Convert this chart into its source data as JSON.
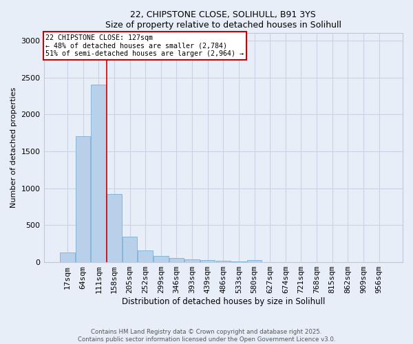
{
  "title_line1": "22, CHIPSTONE CLOSE, SOLIHULL, B91 3YS",
  "title_line2": "Size of property relative to detached houses in Solihull",
  "xlabel": "Distribution of detached houses by size in Solihull",
  "ylabel": "Number of detached properties",
  "bar_labels": [
    "17sqm",
    "64sqm",
    "111sqm",
    "158sqm",
    "205sqm",
    "252sqm",
    "299sqm",
    "346sqm",
    "393sqm",
    "439sqm",
    "486sqm",
    "533sqm",
    "580sqm",
    "627sqm",
    "674sqm",
    "721sqm",
    "768sqm",
    "815sqm",
    "862sqm",
    "909sqm",
    "956sqm"
  ],
  "bar_values": [
    130,
    1710,
    2400,
    920,
    350,
    155,
    80,
    55,
    40,
    25,
    15,
    10,
    25,
    5,
    5,
    5,
    5,
    5,
    2,
    2,
    2
  ],
  "bar_color": "#b8d0ea",
  "bar_edge_color": "#7aafd4",
  "vline_x": 2.5,
  "property_line_label": "22 CHIPSTONE CLOSE: 127sqm",
  "annotation_line2": "← 48% of detached houses are smaller (2,784)",
  "annotation_line3": "51% of semi-detached houses are larger (2,964) →",
  "annotation_box_facecolor": "#ffffff",
  "annotation_box_edgecolor": "#cc0000",
  "vline_color": "#cc0000",
  "ylim": [
    0,
    3100
  ],
  "yticks": [
    0,
    500,
    1000,
    1500,
    2000,
    2500,
    3000
  ],
  "grid_color": "#c8d4e4",
  "background_color": "#e8eef8",
  "footer_line1": "Contains HM Land Registry data © Crown copyright and database right 2025.",
  "footer_line2": "Contains public sector information licensed under the Open Government Licence v3.0."
}
